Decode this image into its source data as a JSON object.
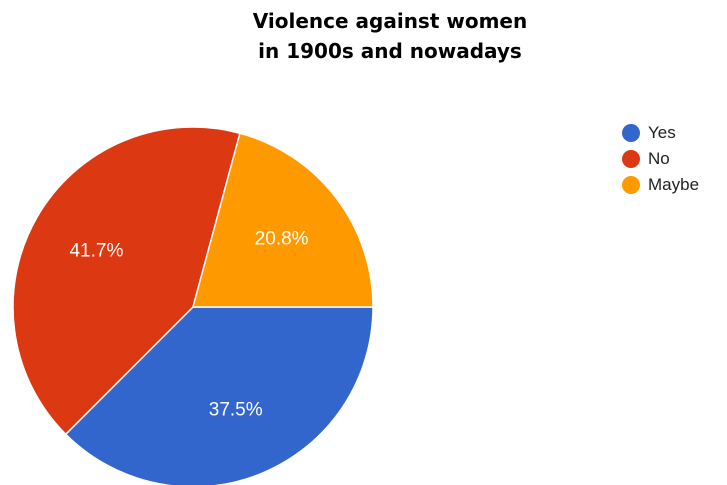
{
  "chart_data": {
    "type": "pie",
    "title_lines": [
      "Violence against women",
      "in 1900s and nowadays"
    ],
    "slices": [
      {
        "label": "Yes",
        "value": 37.5,
        "display": "37.5%",
        "color": "#3366cc"
      },
      {
        "label": "No",
        "value": 41.7,
        "display": "41.7%",
        "color": "#dc3912"
      },
      {
        "label": "Maybe",
        "value": 20.8,
        "display": "20.8%",
        "color": "#ff9900"
      }
    ],
    "start_angle_deg": 90,
    "direction": "clockwise",
    "legend_position": "right",
    "label_color": "#ffffff"
  }
}
